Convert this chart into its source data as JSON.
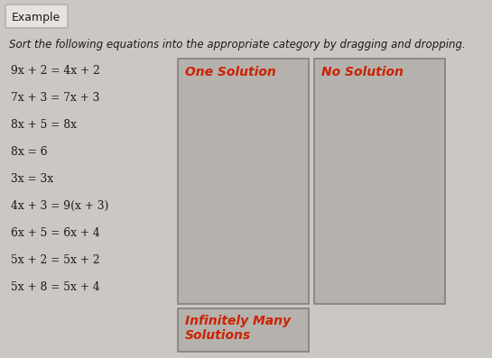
{
  "title": "Example",
  "instruction": "Sort the following equations into the appropriate category by dragging and dropping.",
  "equations": [
    "9x + 2 = 4x + 2",
    "7x + 3 = 7x + 3",
    "8x + 5 = 8x",
    "8x = 6",
    "3x = 3x",
    "4x + 3 = 9(x + 3)",
    "6x + 5 = 6x + 4",
    "5x + 2 = 5x + 2",
    "5x + 8 = 5x + 4"
  ],
  "box1_label": "One Solution",
  "box2_label": "No Solution",
  "box3_label_line1": "Infinitely Many",
  "box3_label_line2": "Solutions",
  "box_color": "#b5b2ad",
  "label_color": "#cc2200",
  "text_color": "#1a1a1a",
  "border_color": "#808080",
  "example_border": "#aaaaaa",
  "example_bg": "#e6e3de",
  "fig_bg": "#cbc8c3"
}
